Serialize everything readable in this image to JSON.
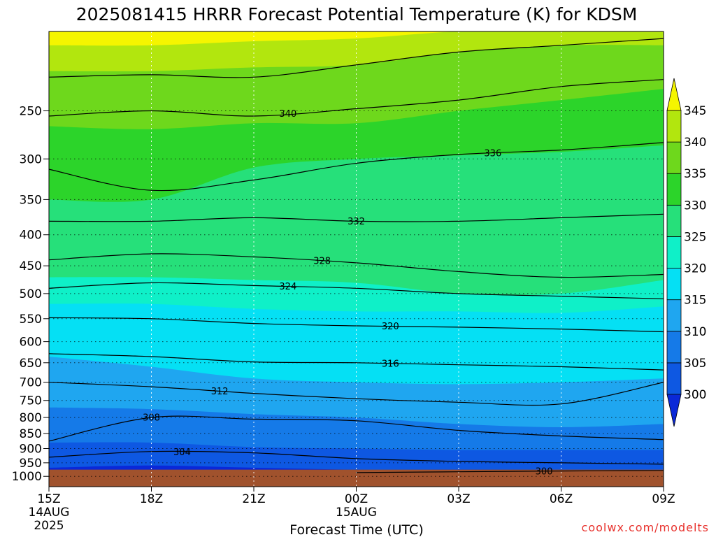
{
  "chart_data": {
    "type": "heatmap",
    "title": "2025081415 HRRR Forecast Potential Temperature (K) for KDSM",
    "xlabel": "Forecast Time (UTC)",
    "ylabel": "",
    "credit": "coolwx.com/modelts",
    "x_ticks": [
      {
        "label": "15Z",
        "sub": [
          "14AUG",
          "2025"
        ],
        "hour": 0
      },
      {
        "label": "18Z",
        "sub": [],
        "hour": 3
      },
      {
        "label": "21Z",
        "sub": [],
        "hour": 6
      },
      {
        "label": "00Z",
        "sub": [
          "15AUG"
        ],
        "hour": 9
      },
      {
        "label": "03Z",
        "sub": [],
        "hour": 12
      },
      {
        "label": "06Z",
        "sub": [],
        "hour": 15
      },
      {
        "label": "09Z",
        "sub": [],
        "hour": 18
      }
    ],
    "xlim": [
      0,
      18
    ],
    "y_axis": {
      "unit": "hPa",
      "scale": "log",
      "inverted": true,
      "ylim": [
        1040,
        185
      ],
      "ticks": [
        250,
        300,
        350,
        400,
        450,
        500,
        550,
        600,
        650,
        700,
        750,
        800,
        850,
        900,
        950,
        1000
      ]
    },
    "colorbar": {
      "levels": [
        300,
        305,
        310,
        315,
        320,
        325,
        330,
        335,
        340,
        345
      ],
      "labels": [
        "300",
        "305",
        "310",
        "315",
        "320",
        "325",
        "330",
        "335",
        "340",
        "345"
      ],
      "colors": [
        "#0a28d8",
        "#0e58e2",
        "#157ae8",
        "#1fa6f0",
        "#05e0f4",
        "#0ff0c8",
        "#26e07a",
        "#2cd42a",
        "#6ed81c",
        "#b2e60e",
        "#f5f500"
      ],
      "extend": "both"
    },
    "surface": {
      "pressure": 975,
      "color": "#a0522d"
    },
    "hours": [
      0,
      3,
      6,
      9,
      12,
      15,
      18
    ],
    "contours": [
      {
        "theta": 300,
        "label": "300",
        "label_hour": 14.5,
        "p": [
          null,
          null,
          null,
          986,
          983,
          980,
          978
        ]
      },
      {
        "theta": 304,
        "label": "304",
        "label_hour": 3.9,
        "p": [
          930,
          910,
          915,
          935,
          945,
          950,
          955
        ]
      },
      {
        "theta": 308,
        "label": "308",
        "label_hour": 3.0,
        "p": [
          875,
          800,
          805,
          810,
          840,
          858,
          870
        ]
      },
      {
        "theta": 312,
        "label": "312",
        "label_hour": 5.0,
        "p": [
          700,
          712,
          730,
          745,
          755,
          760,
          700
        ]
      },
      {
        "theta": 316,
        "label": "316",
        "label_hour": 10.0,
        "p": [
          628,
          635,
          648,
          650,
          655,
          660,
          668
        ]
      },
      {
        "theta": 320,
        "label": "320",
        "label_hour": 10.0,
        "p": [
          548,
          550,
          560,
          565,
          568,
          572,
          578
        ]
      },
      {
        "theta": 324,
        "label": "324",
        "label_hour": 7.0,
        "p": [
          490,
          480,
          485,
          490,
          500,
          505,
          510
        ]
      },
      {
        "theta": 328,
        "label": "328",
        "label_hour": 8.0,
        "p": [
          440,
          430,
          435,
          445,
          460,
          470,
          465
        ]
      },
      {
        "theta": 332,
        "label": "332",
        "label_hour": 9.0,
        "p": [
          380,
          380,
          375,
          380,
          380,
          375,
          370
        ]
      },
      {
        "theta": 336,
        "label": "336",
        "label_hour": 13.0,
        "p": [
          312,
          338,
          325,
          305,
          295,
          290,
          282
        ]
      },
      {
        "theta": 340,
        "label": "340",
        "label_hour": 7.0,
        "p": [
          255,
          250,
          255,
          248,
          240,
          228,
          222
        ]
      },
      {
        "theta": 344,
        "label": "",
        "label_hour": null,
        "p": [
          220,
          218,
          220,
          210,
          200,
          195,
          190
        ]
      }
    ],
    "fill_bands": [
      {
        "color": "#0a28d8",
        "p": [
          968,
          960,
          968,
          975,
          975,
          975,
          975
        ]
      },
      {
        "color": "#0e58e2",
        "p": [
          880,
          880,
          895,
          900,
          905,
          905,
          905
        ]
      },
      {
        "color": "#157ae8",
        "p": [
          770,
          775,
          790,
          800,
          820,
          830,
          820
        ]
      },
      {
        "color": "#1fa6f0",
        "p": [
          635,
          660,
          690,
          700,
          705,
          700,
          690
        ]
      },
      {
        "color": "#05e0f4",
        "p": [
          520,
          520,
          530,
          535,
          535,
          538,
          525
        ]
      },
      {
        "color": "#0ff0c8",
        "p": [
          470,
          470,
          475,
          480,
          500,
          500,
          475
        ]
      },
      {
        "color": "#26e07a",
        "p": [
          350,
          350,
          310,
          300,
          296,
          292,
          285
        ]
      },
      {
        "color": "#2cd42a",
        "p": [
          265,
          268,
          262,
          262,
          250,
          240,
          230
        ]
      },
      {
        "color": "#6ed81c",
        "p": [
          215,
          215,
          212,
          210,
          200,
          195,
          195
        ]
      },
      {
        "color": "#b2e60e",
        "p": [
          195,
          195,
          192,
          190,
          185,
          185,
          185
        ]
      }
    ]
  }
}
